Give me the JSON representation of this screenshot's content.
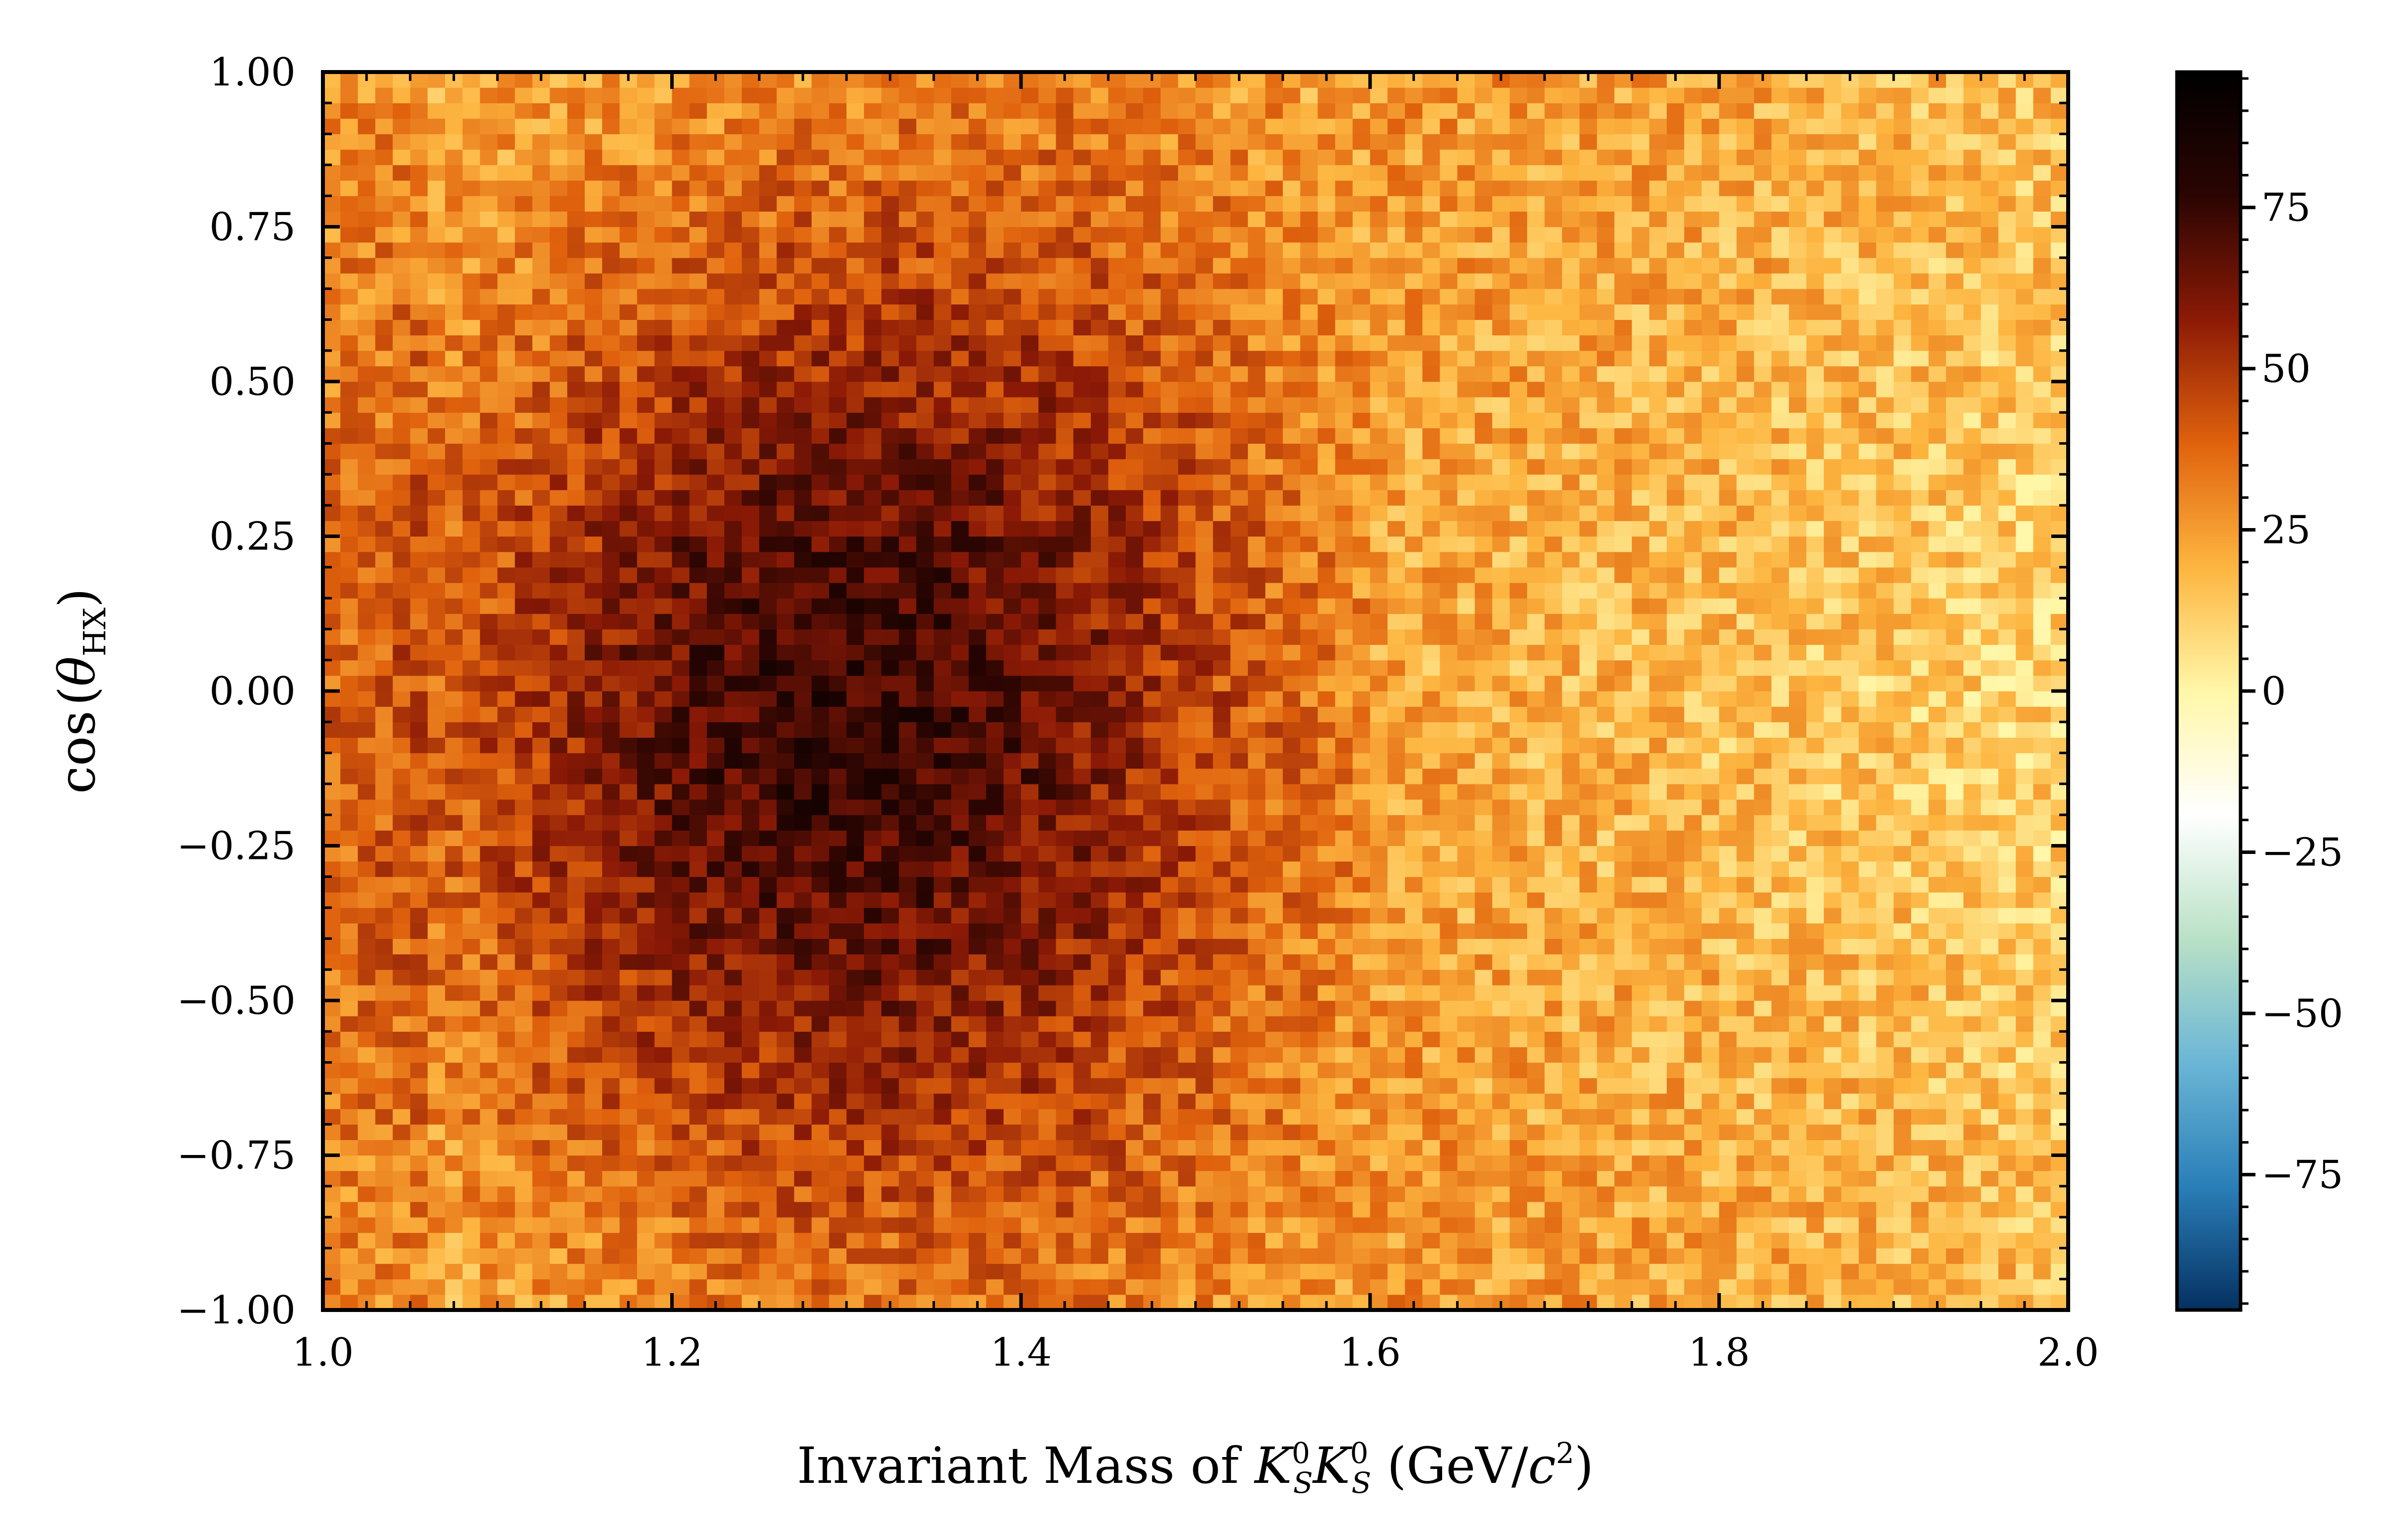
{
  "chart_data": {
    "type": "heatmap",
    "title": "",
    "xlabel": {
      "prefix": "Invariant Mass of ",
      "k": "K",
      "sup": "0",
      "sub": "S",
      "unit_open": " (GeV/",
      "c": "c",
      "csup": "2",
      "unit_close": ")"
    },
    "ylabel": {
      "func": "cos",
      "open": "(",
      "theta": "θ",
      "sub": "HX",
      "close": ")"
    },
    "xlim": [
      1.0,
      2.0
    ],
    "ylim": [
      -1.0,
      1.0
    ],
    "x_ticks": [
      "1.0",
      "1.2",
      "1.4",
      "1.6",
      "1.8",
      "2.0"
    ],
    "y_ticks": [
      "−1.00",
      "−0.75",
      "−0.50",
      "−0.25",
      "0.00",
      "0.25",
      "0.50",
      "0.75",
      "1.00"
    ],
    "bins": {
      "x": 100,
      "y": 80
    },
    "density_model": {
      "description": "2D histogram of event counts per bin",
      "peak_center": [
        1.27,
        -0.05
      ],
      "peak_value": 92,
      "background_level": 18
    },
    "colorbar": {
      "range": [
        -96,
        96
      ],
      "ticks": [
        "−75",
        "−50",
        "−25",
        "0",
        "25",
        "50",
        "75"
      ],
      "tick_values": [
        -75,
        -50,
        -25,
        0,
        25,
        50,
        75
      ],
      "colormap": "diverging blue-white-orange",
      "colors": [
        "#053061",
        "#2a7fb8",
        "#6bb6d6",
        "#b9e1c6",
        "#ffffff",
        "#fff7a8",
        "#fdb540",
        "#e0620d",
        "#8c1a06",
        "#2b0502",
        "#000000"
      ]
    }
  }
}
